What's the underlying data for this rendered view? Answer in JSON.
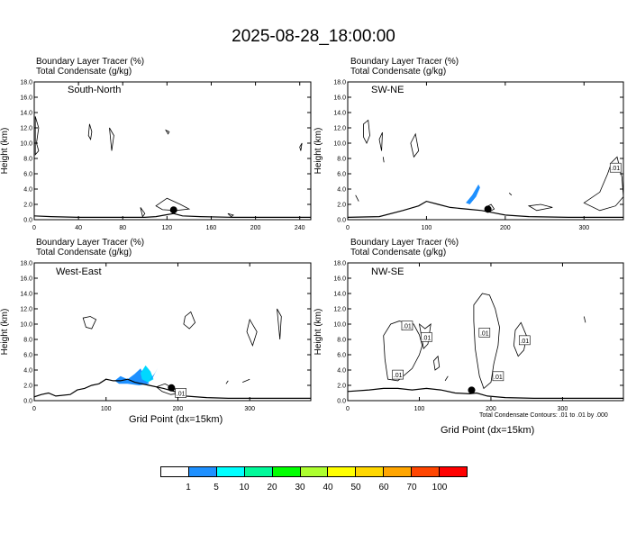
{
  "title": "2025-08-28_18:00:00",
  "panels": [
    {
      "id": "sn",
      "region": "South-North",
      "line1": "Boundary Layer Tracer   (%)",
      "line2": "Total Condensate   (g/kg)",
      "xmax": 250,
      "xticks": [
        0,
        40,
        80,
        120,
        160,
        200,
        240
      ],
      "marker_x": 126,
      "contour_labels": [],
      "tracer": []
    },
    {
      "id": "swne",
      "region": "SW-NE",
      "line1": "Boundary Layer Tracer   (%)",
      "line2": "Total Condensate   (g/kg)",
      "xmax": 350,
      "xticks": [
        0,
        100,
        200,
        300
      ],
      "marker_x": 178,
      "contour_labels": [
        {
          "x": 340,
          "y": 6.8,
          "t": ".01"
        }
      ],
      "tracer": [
        {
          "pts": [
            [
              155,
              2.0
            ],
            [
              163,
              3.0
            ],
            [
              168,
              4.2
            ],
            [
              166,
              4.6
            ],
            [
              158,
              3.2
            ],
            [
              150,
              2.2
            ]
          ],
          "c": "#1E90FF"
        }
      ]
    },
    {
      "id": "we",
      "region": "West-East",
      "line1": "Boundary Layer Tracer   (%)",
      "line2": "Total Condensate   (g/kg)",
      "xmax": 385,
      "xticks": [
        0,
        100,
        200,
        300
      ],
      "marker_x": 191,
      "contour_labels": [
        {
          "x": 204,
          "y": 1.0,
          "t": ".01"
        }
      ],
      "tracer": [
        {
          "pts": [
            [
              112,
              2.6
            ],
            [
              120,
              3.2
            ],
            [
              130,
              2.8
            ],
            [
              140,
              3.5
            ],
            [
              148,
              4.2
            ],
            [
              155,
              3.0
            ],
            [
              160,
              2.2
            ],
            [
              146,
              2.0
            ],
            [
              130,
              2.2
            ],
            [
              118,
              2.2
            ]
          ],
          "c": "#1E90FF"
        },
        {
          "pts": [
            [
              148,
              3.6
            ],
            [
              155,
              4.6
            ],
            [
              162,
              3.8
            ],
            [
              166,
              2.8
            ],
            [
              158,
              2.4
            ],
            [
              150,
              2.8
            ]
          ],
          "c": "#00D8FF"
        },
        {
          "pts": [
            [
              160,
              2.6
            ],
            [
              168,
              3.6
            ],
            [
              172,
              4.3
            ],
            [
              165,
              3.0
            ]
          ],
          "c": "#1E90FF"
        }
      ]
    },
    {
      "id": "nwse",
      "region": "NW-SE",
      "line1": "Boundary Layer Tracer   (%)",
      "line2": "Total Condensate   (g/kg)",
      "xmax": 385,
      "xticks": [
        0,
        100,
        200,
        300
      ],
      "marker_x": 173,
      "contour_labels": [
        {
          "x": 83,
          "y": 9.8,
          "t": ".01"
        },
        {
          "x": 110,
          "y": 8.3,
          "t": ".01"
        },
        {
          "x": 191,
          "y": 8.9,
          "t": ".01"
        },
        {
          "x": 247,
          "y": 7.9,
          "t": ".01"
        },
        {
          "x": 70,
          "y": 3.4,
          "t": ".01"
        },
        {
          "x": 210,
          "y": 3.2,
          "t": ".01"
        }
      ],
      "tracer": []
    }
  ],
  "axis": {
    "ylabel": "Height (km)",
    "yticks": [
      "0.0",
      "2.0",
      "4.0",
      "6.0",
      "8.0",
      "10.0",
      "12.0",
      "14.0",
      "16.0",
      "18.0"
    ],
    "xlabel": "Grid Point (dx=15km)",
    "contour_note": "Total Condensate Contours: .01 to .01 by .000"
  },
  "colorbar": {
    "colors": [
      "#FFFFFF",
      "#1E90FF",
      "#00FFFF",
      "#00FA9A",
      "#00FF00",
      "#ADFF2F",
      "#FFFF00",
      "#FFD700",
      "#FFA500",
      "#FF4500",
      "#FF0000"
    ],
    "labels": [
      "1",
      "5",
      "10",
      "20",
      "30",
      "40",
      "50",
      "60",
      "70",
      "100"
    ]
  },
  "chart_data": [
    {
      "type": "heatmap",
      "title": "South-North",
      "xlabel": "",
      "ylabel": "Height (km)",
      "xlim": [
        0,
        250
      ],
      "ylim": [
        0,
        18
      ],
      "series": [
        {
          "name": "Total Condensate Contours: .01 to .01 by .000",
          "values": []
        }
      ]
    },
    {
      "type": "heatmap",
      "title": "SW-NE",
      "xlabel": "",
      "ylabel": "Height (km)",
      "xlim": [
        0,
        350
      ],
      "ylim": [
        0,
        18
      ]
    },
    {
      "type": "heatmap",
      "title": "West-East",
      "xlabel": "Grid Point (dx=15km)",
      "ylabel": "Height (km)",
      "xlim": [
        0,
        385
      ],
      "ylim": [
        0,
        18
      ]
    },
    {
      "type": "heatmap",
      "title": "NW-SE",
      "xlabel": "Grid Point (dx=15km)",
      "ylabel": "Height (km)",
      "xlim": [
        0,
        385
      ],
      "ylim": [
        0,
        18
      ]
    }
  ]
}
